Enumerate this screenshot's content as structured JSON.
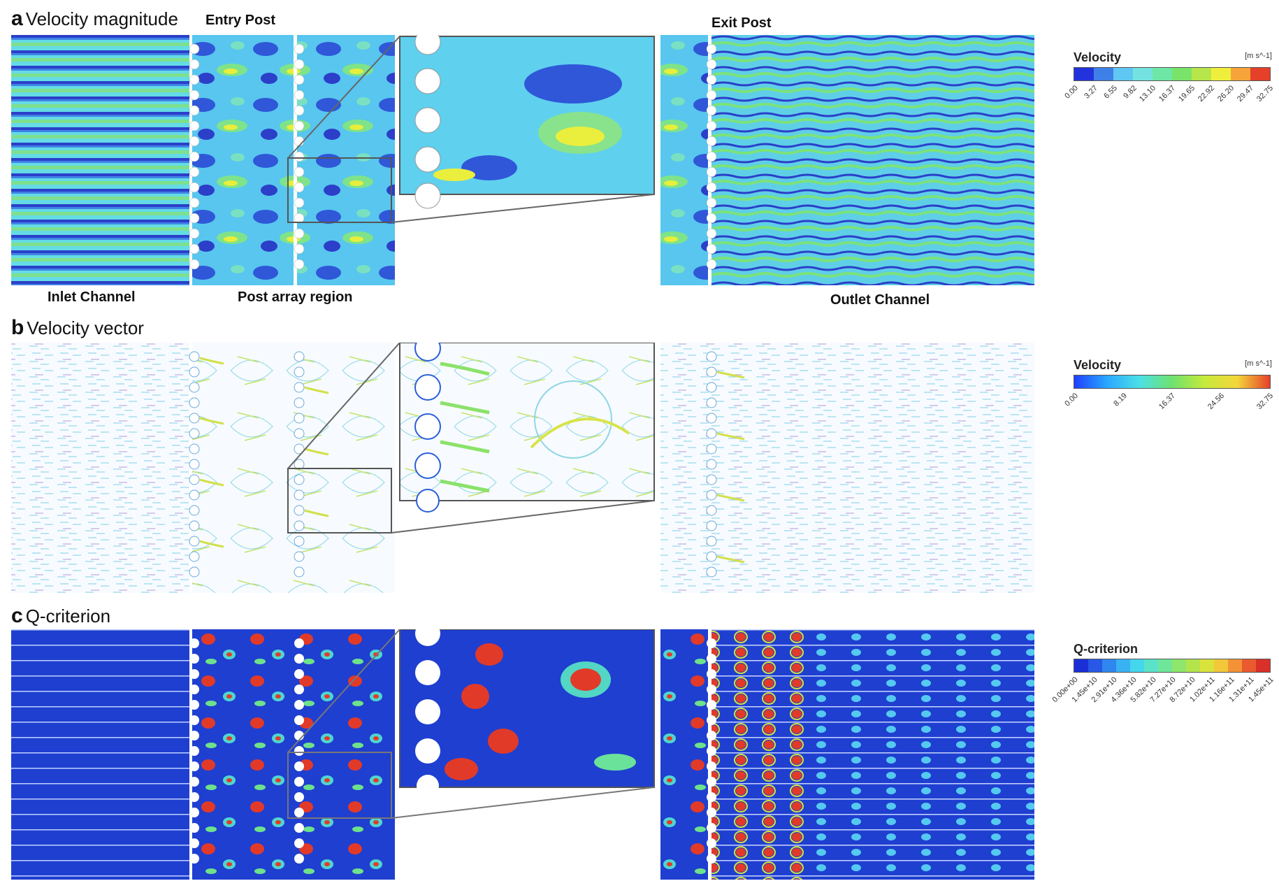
{
  "panels": [
    {
      "letter": "a",
      "title": "Velocity magnitude"
    },
    {
      "letter": "b",
      "title": "Velocity vector"
    },
    {
      "letter": "c",
      "title": "Q-criterion"
    }
  ],
  "region_labels": {
    "entry_post": "Entry Post",
    "exit_post": "Exit Post",
    "inlet_channel": "Inlet Channel",
    "post_array_region": "Post array region",
    "outlet_channel": "Outlet Channel"
  },
  "legends": [
    {
      "title": "Velocity",
      "unit": "[m s^-1]",
      "colors": [
        "#2233dd",
        "#3f7fe8",
        "#5fc7f2",
        "#74e3e0",
        "#6ee7a6",
        "#7ae36a",
        "#b6e64a",
        "#f0ee3c",
        "#f6a43a",
        "#e4402a"
      ],
      "ticks": [
        "0.00",
        "3.27",
        "6.55",
        "9.82",
        "13.10",
        "16.37",
        "19.65",
        "22.92",
        "26.20",
        "29.47",
        "32.75"
      ]
    },
    {
      "title": "Velocity",
      "unit": "[m s^-1]",
      "gradient": [
        "#1f3fff",
        "#29a7ff",
        "#4be0e6",
        "#6ee26f",
        "#c6ea3a",
        "#f3d63a",
        "#e6402a"
      ],
      "ticks": [
        "0.00",
        "8.19",
        "16.37",
        "24.56",
        "32.75"
      ]
    },
    {
      "title": "Q-criterion",
      "unit": "",
      "colors": [
        "#1b2fd6",
        "#2758e6",
        "#2f86ef",
        "#39b2f3",
        "#44d6ec",
        "#5ae3c8",
        "#6fe69a",
        "#8ee66c",
        "#b4e44c",
        "#d9e33c",
        "#f2c83a",
        "#f39236",
        "#e95a2e",
        "#d9302a"
      ],
      "ticks": [
        "0.00e+00",
        "1.45e+10",
        "2.91e+10",
        "4.36e+10",
        "5.82e+10",
        "7.27e+10",
        "8.72e+10",
        "1.02e+11",
        "1.16e+11",
        "1.31e+11",
        "1.45e+11"
      ]
    }
  ]
}
